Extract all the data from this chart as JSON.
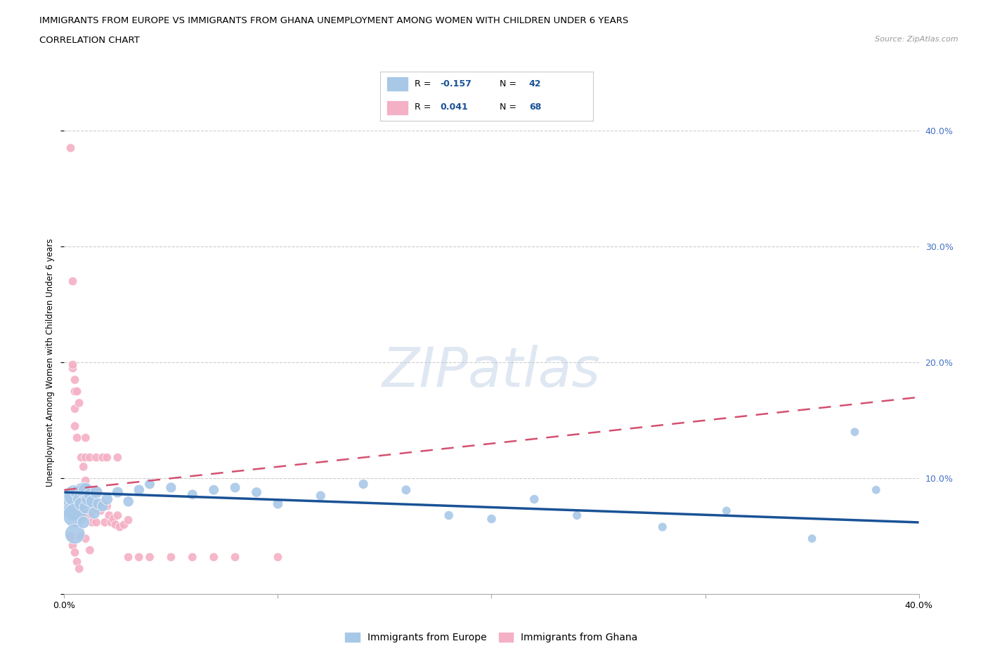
{
  "title_line1": "IMMIGRANTS FROM EUROPE VS IMMIGRANTS FROM GHANA UNEMPLOYMENT AMONG WOMEN WITH CHILDREN UNDER 6 YEARS",
  "title_line2": "CORRELATION CHART",
  "source": "Source: ZipAtlas.com",
  "ylabel": "Unemployment Among Women with Children Under 6 years",
  "xlim": [
    0.0,
    0.4
  ],
  "ylim": [
    0.0,
    0.4
  ],
  "europe_R": -0.157,
  "europe_N": 42,
  "ghana_R": 0.041,
  "ghana_N": 68,
  "europe_color": "#a8c8e8",
  "ghana_color": "#f4b0c4",
  "europe_line_color": "#1a5296",
  "ghana_line_color": "#d45070",
  "watermark": "ZIPatlas",
  "europe_x": [
    0.003,
    0.004,
    0.005,
    0.005,
    0.005,
    0.006,
    0.007,
    0.008,
    0.009,
    0.009,
    0.01,
    0.01,
    0.011,
    0.012,
    0.013,
    0.014,
    0.015,
    0.016,
    0.018,
    0.02,
    0.025,
    0.03,
    0.035,
    0.04,
    0.05,
    0.06,
    0.07,
    0.08,
    0.09,
    0.1,
    0.12,
    0.14,
    0.16,
    0.18,
    0.2,
    0.22,
    0.24,
    0.28,
    0.31,
    0.35,
    0.37,
    0.38
  ],
  "europe_y": [
    0.08,
    0.072,
    0.085,
    0.068,
    0.052,
    0.088,
    0.082,
    0.078,
    0.09,
    0.062,
    0.09,
    0.075,
    0.082,
    0.086,
    0.08,
    0.07,
    0.088,
    0.078,
    0.076,
    0.082,
    0.088,
    0.08,
    0.09,
    0.095,
    0.092,
    0.086,
    0.09,
    0.092,
    0.088,
    0.078,
    0.085,
    0.095,
    0.09,
    0.068,
    0.065,
    0.082,
    0.068,
    0.058,
    0.072,
    0.048,
    0.14,
    0.09
  ],
  "europe_size": [
    550,
    400,
    500,
    600,
    420,
    200,
    180,
    200,
    250,
    160,
    220,
    180,
    170,
    160,
    160,
    150,
    170,
    140,
    130,
    140,
    130,
    120,
    120,
    110,
    115,
    110,
    110,
    110,
    110,
    110,
    100,
    100,
    95,
    90,
    90,
    90,
    85,
    85,
    80,
    80,
    80,
    80
  ],
  "ghana_x": [
    0.003,
    0.004,
    0.004,
    0.005,
    0.005,
    0.005,
    0.005,
    0.006,
    0.006,
    0.007,
    0.007,
    0.008,
    0.008,
    0.009,
    0.009,
    0.01,
    0.01,
    0.01,
    0.011,
    0.011,
    0.012,
    0.012,
    0.013,
    0.013,
    0.014,
    0.015,
    0.015,
    0.016,
    0.017,
    0.018,
    0.019,
    0.02,
    0.021,
    0.022,
    0.023,
    0.024,
    0.025,
    0.026,
    0.028,
    0.03,
    0.004,
    0.005,
    0.006,
    0.007,
    0.008,
    0.009,
    0.01,
    0.012,
    0.015,
    0.018,
    0.02,
    0.025,
    0.03,
    0.035,
    0.04,
    0.05,
    0.06,
    0.07,
    0.08,
    0.1,
    0.003,
    0.004,
    0.005,
    0.006,
    0.007,
    0.008,
    0.01,
    0.012
  ],
  "ghana_y": [
    0.385,
    0.27,
    0.195,
    0.175,
    0.16,
    0.145,
    0.09,
    0.135,
    0.078,
    0.092,
    0.07,
    0.088,
    0.075,
    0.086,
    0.068,
    0.135,
    0.098,
    0.086,
    0.082,
    0.07,
    0.088,
    0.068,
    0.078,
    0.062,
    0.074,
    0.088,
    0.062,
    0.076,
    0.072,
    0.078,
    0.062,
    0.076,
    0.068,
    0.062,
    0.065,
    0.06,
    0.068,
    0.058,
    0.06,
    0.064,
    0.198,
    0.185,
    0.175,
    0.165,
    0.118,
    0.11,
    0.118,
    0.118,
    0.118,
    0.118,
    0.118,
    0.118,
    0.032,
    0.032,
    0.032,
    0.032,
    0.032,
    0.032,
    0.032,
    0.032,
    0.05,
    0.042,
    0.036,
    0.028,
    0.022,
    0.05,
    0.048,
    0.038
  ],
  "ghana_size": [
    80,
    80,
    80,
    80,
    80,
    80,
    80,
    80,
    80,
    80,
    80,
    80,
    80,
    80,
    80,
    80,
    80,
    80,
    80,
    80,
    80,
    80,
    80,
    80,
    80,
    80,
    80,
    80,
    80,
    80,
    80,
    80,
    80,
    80,
    80,
    80,
    80,
    80,
    80,
    80,
    80,
    80,
    80,
    80,
    80,
    80,
    80,
    80,
    80,
    80,
    80,
    80,
    80,
    80,
    80,
    80,
    80,
    80,
    80,
    80,
    80,
    80,
    80,
    80,
    80,
    80,
    80,
    80
  ],
  "europe_line_x0": 0.0,
  "europe_line_y0": 0.088,
  "europe_line_x1": 0.4,
  "europe_line_y1": 0.062,
  "ghana_line_x0": 0.0,
  "ghana_line_y0": 0.09,
  "ghana_line_x1": 0.4,
  "ghana_line_y1": 0.17
}
